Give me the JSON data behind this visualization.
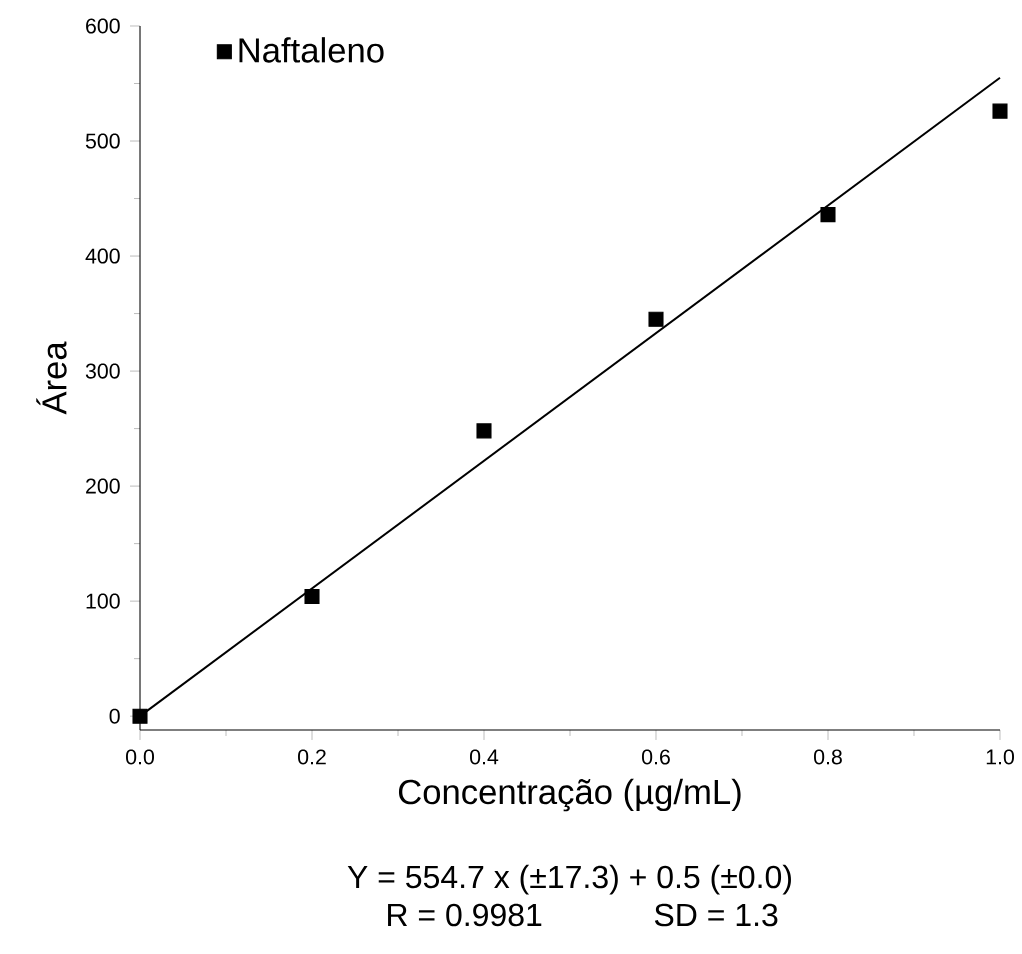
{
  "chart_data": {
    "type": "scatter",
    "xlabel": "Concentração (µg/mL)",
    "ylabel": "Área",
    "xlim": [
      0,
      1
    ],
    "ylim": [
      -12,
      600
    ],
    "xticks": [
      {
        "value": 0,
        "label": "0.0"
      },
      {
        "value": 0.1,
        "label": null
      },
      {
        "value": 0.2,
        "label": "0.2"
      },
      {
        "value": 0.3,
        "label": null
      },
      {
        "value": 0.4,
        "label": "0.4"
      },
      {
        "value": 0.5,
        "label": null
      },
      {
        "value": 0.6,
        "label": "0.6"
      },
      {
        "value": 0.7,
        "label": null
      },
      {
        "value": 0.8,
        "label": "0.8"
      },
      {
        "value": 0.9,
        "label": null
      },
      {
        "value": 1,
        "label": "1.0"
      }
    ],
    "yticks": [
      0,
      {
        "value": 50,
        "label": null
      },
      100,
      {
        "value": 150,
        "label": null
      },
      200,
      {
        "value": 250,
        "label": null
      },
      300,
      {
        "value": 350,
        "label": null
      },
      400,
      {
        "value": 450,
        "label": null
      },
      500,
      {
        "value": 550,
        "label": null
      },
      600
    ],
    "marker": "square",
    "legend": "top left",
    "grid": false,
    "series": [
      {
        "name": "Naftaleno",
        "color": "#000000",
        "x": [
          0,
          0.2,
          0.4,
          0.6,
          0.8,
          1.0
        ],
        "values": [
          0,
          104,
          248,
          345,
          436,
          526
        ]
      },
      {
        "type": "line",
        "marker": "none",
        "color": "#000000",
        "x": [
          0,
          1
        ],
        "values": [
          0,
          555
        ]
      }
    ],
    "annotations": [
      "Y = 554.7 x (±17.3) + 0.5 (±0.0)",
      "R = 0.9981",
      "SD = 1.3"
    ]
  }
}
